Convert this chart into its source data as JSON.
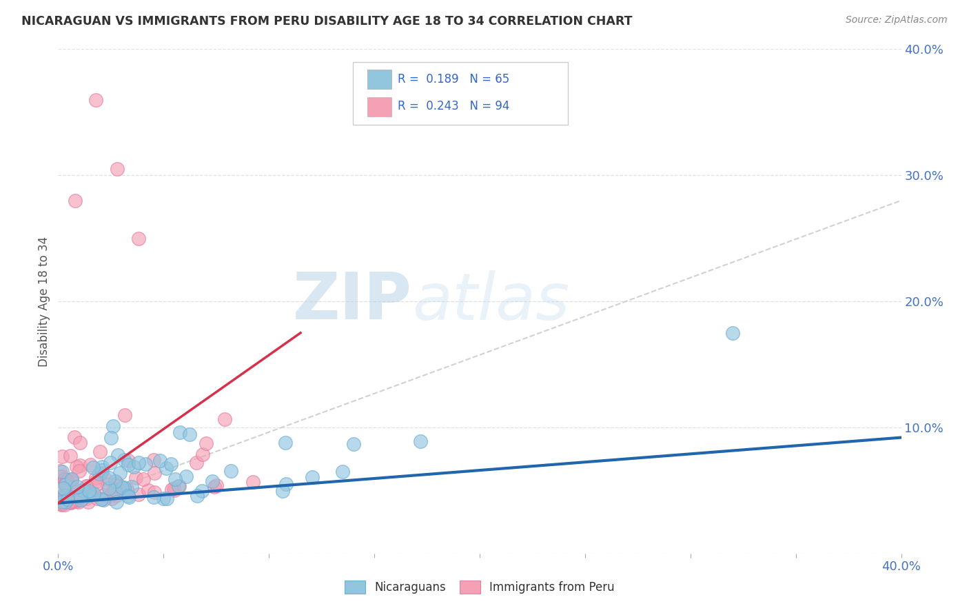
{
  "title": "NICARAGUAN VS IMMIGRANTS FROM PERU DISABILITY AGE 18 TO 34 CORRELATION CHART",
  "source": "Source: ZipAtlas.com",
  "ylabel": "Disability Age 18 to 34",
  "xlim": [
    0.0,
    0.4
  ],
  "ylim": [
    0.0,
    0.4
  ],
  "blue_color": "#92c5de",
  "blue_edge_color": "#6aaed6",
  "pink_color": "#f4a0b5",
  "pink_edge_color": "#e87da0",
  "blue_line_color": "#2166ac",
  "pink_line_color": "#d6304a",
  "dash_line_color": "#cccccc",
  "legend_R_blue": "0.189",
  "legend_N_blue": "65",
  "legend_R_pink": "0.243",
  "legend_N_pink": "94",
  "watermark_zip": "ZIP",
  "watermark_atlas": "atlas",
  "background_color": "#ffffff",
  "grid_color": "#dddddd",
  "title_color": "#333333",
  "source_color": "#888888",
  "tick_color": "#4472c4",
  "ylabel_color": "#555555"
}
